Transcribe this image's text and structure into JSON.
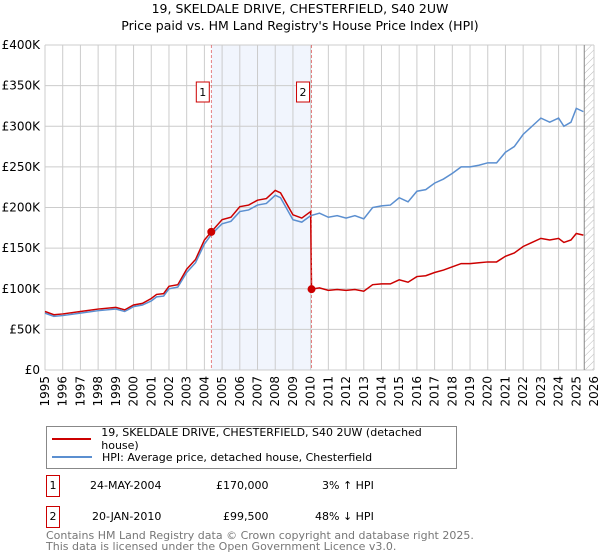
{
  "title": "19, SKELDALE DRIVE, CHESTERFIELD, S40 2UW",
  "subtitle": "Price paid vs. HM Land Registry's House Price Index (HPI)",
  "chart_data": {
    "type": "line",
    "ylim": [
      0,
      400000
    ],
    "xlim": [
      1995,
      2026
    ],
    "yticks": [
      {
        "v": 0,
        "label": "£0"
      },
      {
        "v": 50000,
        "label": "£50K"
      },
      {
        "v": 100000,
        "label": "£100K"
      },
      {
        "v": 150000,
        "label": "£150K"
      },
      {
        "v": 200000,
        "label": "£200K"
      },
      {
        "v": 250000,
        "label": "£250K"
      },
      {
        "v": 300000,
        "label": "£300K"
      },
      {
        "v": 350000,
        "label": "£350K"
      },
      {
        "v": 400000,
        "label": "£400K"
      }
    ],
    "xticks": [
      "1995",
      "1996",
      "1997",
      "1998",
      "1999",
      "2000",
      "2001",
      "2002",
      "2003",
      "2004",
      "2005",
      "2006",
      "2007",
      "2008",
      "2009",
      "2010",
      "2011",
      "2012",
      "2013",
      "2014",
      "2015",
      "2016",
      "2017",
      "2018",
      "2019",
      "2020",
      "2021",
      "2022",
      "2023",
      "2024",
      "2025",
      "2026"
    ],
    "shaded_range": [
      2004.39,
      2010.05
    ],
    "forecast_from": 2025.45,
    "series": [
      {
        "name": "HPI: Average price, detached house, Chesterfield",
        "color": "#5b8fd0",
        "x": [
          1995,
          1995.5,
          1996,
          1997,
          1998,
          1999,
          1999.5,
          2000,
          2000.5,
          2001,
          2001.3,
          2001.7,
          2002,
          2002.5,
          2003,
          2003.5,
          2004,
          2004.4,
          2005,
          2005.5,
          2006,
          2006.5,
          2007,
          2007.5,
          2008,
          2008.3,
          2009,
          2009.5,
          2010,
          2010.5,
          2011,
          2011.5,
          2012,
          2012.5,
          2013,
          2013.5,
          2014,
          2014.5,
          2015,
          2015.5,
          2016,
          2016.5,
          2017,
          2017.5,
          2018,
          2018.5,
          2019,
          2019.5,
          2020,
          2020.5,
          2021,
          2021.5,
          2022,
          2022.5,
          2023,
          2023.5,
          2024,
          2024.3,
          2024.7,
          2025,
          2025.4
        ],
        "values": [
          70,
          66,
          67,
          70,
          73,
          75,
          72,
          78,
          80,
          85,
          90,
          91,
          100,
          102,
          120,
          132,
          155,
          167,
          180,
          183,
          195,
          197,
          203,
          205,
          215,
          212,
          185,
          182,
          190,
          193,
          188,
          190,
          187,
          190,
          186,
          200,
          202,
          203,
          212,
          207,
          220,
          222,
          230,
          235,
          242,
          250,
          250,
          252,
          255,
          255,
          268,
          275,
          290,
          300,
          310,
          305,
          310,
          300,
          305,
          322,
          318
        ]
      },
      {
        "name": "19, SKELDALE DRIVE, CHESTERFIELD, S40 2UW (detached house)",
        "color": "#cc0000",
        "x": [
          1995,
          1995.5,
          1996,
          1997,
          1998,
          1999,
          1999.5,
          2000,
          2000.5,
          2001,
          2001.3,
          2001.7,
          2002,
          2002.5,
          2003,
          2003.5,
          2004,
          2004.39,
          2005,
          2005.5,
          2006,
          2006.5,
          2007,
          2007.5,
          2008,
          2008.3,
          2009,
          2009.5,
          2010,
          2010.05,
          2010.5,
          2011,
          2011.5,
          2012,
          2012.5,
          2013,
          2013.5,
          2014,
          2014.5,
          2015,
          2015.5,
          2016,
          2016.5,
          2017,
          2017.5,
          2018,
          2018.5,
          2019,
          2019.5,
          2020,
          2020.5,
          2021,
          2021.5,
          2022,
          2022.5,
          2023,
          2023.5,
          2024,
          2024.3,
          2024.7,
          2025,
          2025.4
        ],
        "values": [
          72,
          68,
          69,
          72,
          75,
          77,
          74,
          80,
          82,
          88,
          93,
          94,
          103,
          105,
          124,
          136,
          160,
          170,
          185,
          188,
          201,
          203,
          209,
          211,
          221,
          218,
          191,
          187,
          195,
          99.5,
          101,
          98,
          99,
          98,
          99,
          97,
          105,
          106,
          106,
          111,
          108,
          115,
          116,
          120,
          123,
          127,
          131,
          131,
          132,
          133,
          133,
          140,
          144,
          152,
          157,
          162,
          160,
          162,
          157,
          160,
          168,
          166
        ]
      }
    ],
    "value_unit": "thousand GBP",
    "sales": [
      {
        "id": "1",
        "x": 2004.39,
        "value": 170
      },
      {
        "id": "2",
        "x": 2010.05,
        "value": 99.5
      }
    ]
  },
  "legend": [
    {
      "label": "19, SKELDALE DRIVE, CHESTERFIELD, S40 2UW (detached house)",
      "color": "#cc0000"
    },
    {
      "label": "HPI: Average price, detached house, Chesterfield",
      "color": "#5b8fd0"
    }
  ],
  "transactions": [
    {
      "id": "1",
      "date": "24-MAY-2004",
      "price": "£170,000",
      "hpi": "3% ↑ HPI"
    },
    {
      "id": "2",
      "date": "20-JAN-2010",
      "price": "£99,500",
      "hpi": "48% ↓ HPI"
    }
  ],
  "footer": [
    "Contains HM Land Registry data © Crown copyright and database right 2025.",
    "This data is licensed under the Open Government Licence v3.0."
  ]
}
